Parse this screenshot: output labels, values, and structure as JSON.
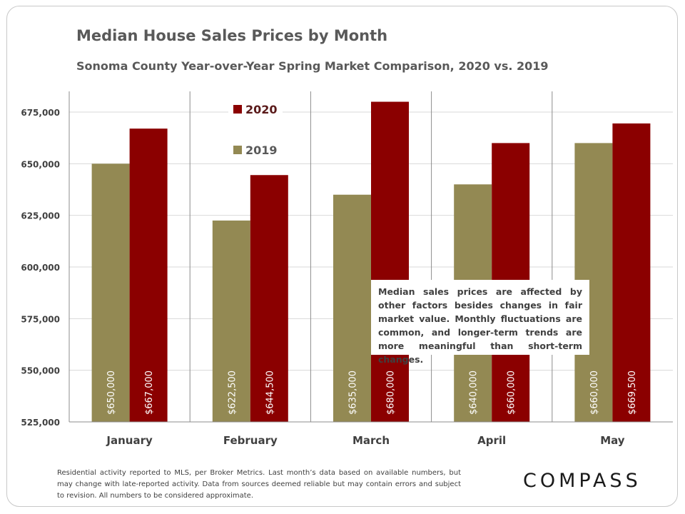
{
  "chart_data": {
    "type": "bar",
    "title": "Median House Sales Prices by Month",
    "subtitle": "Sonoma County Year-over-Year Spring Market Comparison,  2020 vs. 2019",
    "categories": [
      "January",
      "February",
      "March",
      "April",
      "May"
    ],
    "series": [
      {
        "name": "2019",
        "color": "#938953",
        "values": [
          650000,
          622500,
          635000,
          640000,
          660000
        ],
        "labels": [
          "$650,000",
          "$622,500",
          "$635,000",
          "$640,000",
          "$660,000"
        ]
      },
      {
        "name": "2020",
        "color": "#8b0000",
        "values": [
          667000,
          644500,
          680000,
          660000,
          669500
        ],
        "labels": [
          "$667,000",
          "$644,500",
          "$680,000",
          "$660,000",
          "$669,500"
        ]
      }
    ],
    "ylim": [
      525000,
      680000
    ],
    "yticks": [
      525000,
      550000,
      575000,
      600000,
      625000,
      650000,
      675000
    ],
    "ytick_labels": [
      "525,000",
      "550,000",
      "575,000",
      "600,000",
      "625,000",
      "650,000",
      "675,000"
    ],
    "legend_order": [
      "2020",
      "2019"
    ],
    "legend_position": "top-center",
    "grid": true
  },
  "annotation": "Median sales prices are affected by other factors besides changes in fair market value. Monthly fluctuations are common, and longer-term trends are more meaningful than short-term changes.",
  "footnote": "Residential activity reported to MLS, per Broker Metrics. Last month’s data based on available numbers, but may change with late-reported activity. Data from sources deemed reliable but may contain errors and subject to revision. All numbers to be considered approximate.",
  "logo": "COMPASS",
  "colors": {
    "grid": "#d9d9d9",
    "axis": "#8c8c8c",
    "text": "#404040"
  }
}
